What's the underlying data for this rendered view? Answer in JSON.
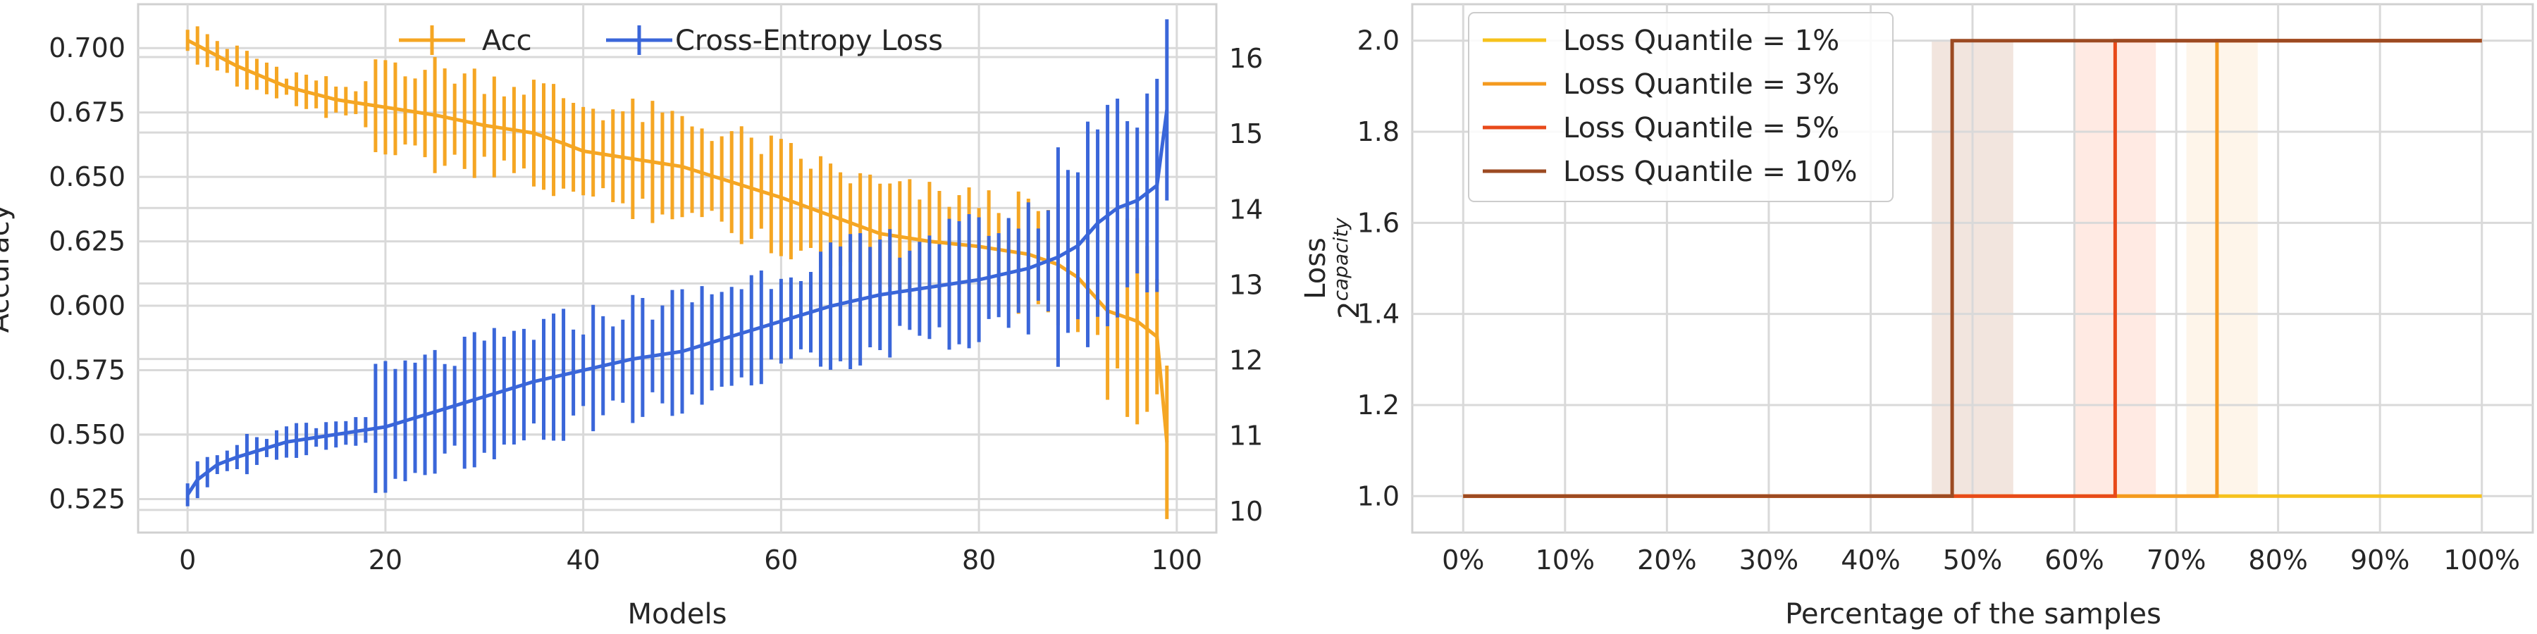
{
  "chart_data": [
    {
      "type": "line",
      "xlabel": "Models",
      "ylabel_left": "Accuracy",
      "ylabel_right": "Loss",
      "xlim": [
        -5,
        104
      ],
      "ylim_left": [
        0.512,
        0.717
      ],
      "ylim_right": [
        9.7,
        16.7
      ],
      "xticks": [
        0,
        20,
        40,
        60,
        80,
        100
      ],
      "yticks_left": [
        "0.525",
        "0.550",
        "0.575",
        "0.600",
        "0.625",
        "0.650",
        "0.675",
        "0.700"
      ],
      "yticks_right": [
        "10",
        "11",
        "12",
        "13",
        "14",
        "15",
        "16"
      ],
      "grid": true,
      "legend_position": "top-center",
      "series": [
        {
          "name": "Acc",
          "axis": "left",
          "color": "#f5a623",
          "error_bars": true,
          "anchors": [
            [
              0,
              0.703
            ],
            [
              1,
              0.701
            ],
            [
              3,
              0.697
            ],
            [
              5,
              0.693
            ],
            [
              10,
              0.685
            ],
            [
              15,
              0.68
            ],
            [
              20,
              0.677
            ],
            [
              25,
              0.674
            ],
            [
              30,
              0.67
            ],
            [
              35,
              0.667
            ],
            [
              38,
              0.663
            ],
            [
              40,
              0.66
            ],
            [
              45,
              0.657
            ],
            [
              50,
              0.654
            ],
            [
              55,
              0.648
            ],
            [
              60,
              0.642
            ],
            [
              65,
              0.635
            ],
            [
              70,
              0.628
            ],
            [
              75,
              0.625
            ],
            [
              80,
              0.623
            ],
            [
              85,
              0.62
            ],
            [
              88,
              0.616
            ],
            [
              90,
              0.611
            ],
            [
              93,
              0.598
            ],
            [
              96,
              0.594
            ],
            [
              98,
              0.588
            ],
            [
              99,
              0.547
            ]
          ]
        },
        {
          "name": "Cross-Entropy Loss",
          "axis": "right",
          "color": "#3a66d9",
          "error_bars": true,
          "anchors": [
            [
              0,
              10.2
            ],
            [
              1,
              10.4
            ],
            [
              2,
              10.5
            ],
            [
              3,
              10.6
            ],
            [
              5,
              10.7
            ],
            [
              10,
              10.9
            ],
            [
              15,
              11.0
            ],
            [
              20,
              11.1
            ],
            [
              25,
              11.3
            ],
            [
              30,
              11.5
            ],
            [
              35,
              11.7
            ],
            [
              40,
              11.85
            ],
            [
              45,
              12.0
            ],
            [
              50,
              12.1
            ],
            [
              55,
              12.3
            ],
            [
              60,
              12.5
            ],
            [
              65,
              12.7
            ],
            [
              70,
              12.85
            ],
            [
              75,
              12.95
            ],
            [
              80,
              13.05
            ],
            [
              85,
              13.2
            ],
            [
              88,
              13.35
            ],
            [
              90,
              13.5
            ],
            [
              92,
              13.8
            ],
            [
              94,
              14.0
            ],
            [
              96,
              14.1
            ],
            [
              98,
              14.3
            ],
            [
              99,
              15.3
            ]
          ]
        }
      ]
    },
    {
      "type": "line",
      "xlabel": "Percentage of the samples",
      "ylabel": "2capacity",
      "ylabel_base": "2",
      "ylabel_sup": "capacity",
      "xlim": [
        -5,
        105
      ],
      "ylim": [
        0.92,
        2.08
      ],
      "xticks": [
        "0%",
        "10%",
        "20%",
        "30%",
        "40%",
        "50%",
        "60%",
        "70%",
        "80%",
        "90%",
        "100%"
      ],
      "yticks": [
        "1.0",
        "1.2",
        "1.4",
        "1.6",
        "1.8",
        "2.0"
      ],
      "grid": true,
      "legend_position": "top-left",
      "bands": [
        {
          "x": [
            46,
            54
          ],
          "color": "#b5704a"
        },
        {
          "x": [
            60,
            68
          ],
          "color": "#ff8c66"
        },
        {
          "x": [
            71,
            78
          ],
          "color": "#f7c88a"
        }
      ],
      "series": [
        {
          "name": "Loss Quantile = 1%",
          "color": "#f6c21c",
          "step_at": null,
          "x": [
            0,
            100
          ],
          "y": [
            1.0,
            1.0
          ]
        },
        {
          "name": "Loss Quantile = 3%",
          "color": "#f49a1e",
          "step_at": 74,
          "x": [
            0,
            74,
            74,
            100
          ],
          "y": [
            1.0,
            1.0,
            2.0,
            2.0
          ]
        },
        {
          "name": "Loss Quantile = 5%",
          "color": "#e84a1a",
          "step_at": 64,
          "x": [
            0,
            64,
            64,
            100
          ],
          "y": [
            1.0,
            1.0,
            2.0,
            2.0
          ]
        },
        {
          "name": "Loss Quantile = 10%",
          "color": "#9c4a22",
          "step_at": 48,
          "x": [
            0,
            48,
            48,
            100
          ],
          "y": [
            1.0,
            1.0,
            2.0,
            2.0
          ]
        }
      ]
    }
  ]
}
